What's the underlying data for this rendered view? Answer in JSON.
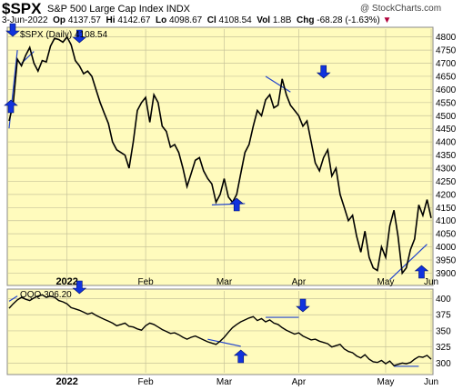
{
  "header": {
    "symbol": "$SPX",
    "description": "S&P 500 Large Cap Index",
    "exchange": "INDX",
    "brand": "@ StockCharts.com",
    "stats": {
      "date": "3-Jun-2022",
      "open_label": "Op",
      "open": "4137.57",
      "high_label": "Hi",
      "high": "4142.67",
      "low_label": "Lo",
      "low": "4098.67",
      "close_label": "Cl",
      "close": "4108.54",
      "vol_label": "Vol",
      "vol": "1.8B",
      "chg_label": "Chg",
      "chg": "-68.28 (-1.63%)"
    }
  },
  "chart_data": [
    {
      "type": "line",
      "legend": "$SPX (Daily) 4108.54",
      "series": [
        {
          "name": "$SPX (Daily)",
          "color": "#000000",
          "values": [
            4480,
            4545,
            4715,
            4690,
            4730,
            4760,
            4700,
            4670,
            4710,
            4705,
            4765,
            4795,
            4790,
            4780,
            4800,
            4770,
            4710,
            4690,
            4660,
            4670,
            4650,
            4600,
            4550,
            4510,
            4470,
            4400,
            4370,
            4360,
            4350,
            4300,
            4400,
            4520,
            4550,
            4570,
            4475,
            4580,
            4550,
            4460,
            4440,
            4380,
            4390,
            4360,
            4300,
            4230,
            4280,
            4330,
            4340,
            4290,
            4260,
            4240,
            4170,
            4200,
            4260,
            4190,
            4170,
            4200,
            4280,
            4360,
            4390,
            4460,
            4520,
            4500,
            4560,
            4580,
            4530,
            4540,
            4640,
            4580,
            4540,
            4520,
            4500,
            4460,
            4480,
            4400,
            4320,
            4290,
            4340,
            4370,
            4270,
            4300,
            4200,
            4150,
            4100,
            4120,
            4040,
            3980,
            4060,
            3960,
            3920,
            3910,
            4000,
            3960,
            4080,
            4140,
            4040,
            3900,
            3920,
            3990,
            4030,
            4160,
            4120,
            4180,
            4110
          ]
        }
      ],
      "y_ticks": [
        3900,
        3950,
        4000,
        4050,
        4100,
        4150,
        4200,
        4250,
        4300,
        4350,
        4400,
        4450,
        4500,
        4550,
        4600,
        4650,
        4700,
        4750,
        4800
      ],
      "ylim": [
        3860,
        4830
      ],
      "x_tick_labels": [
        "2022",
        "Feb",
        "Mar",
        "Apr",
        "May",
        "Jun"
      ],
      "x_tick_index": [
        14,
        33,
        52,
        70,
        91,
        102
      ],
      "grid": true,
      "arrows_down_index": [
        17,
        76
      ],
      "arrows_up_index": [
        3,
        55,
        101
      ]
    },
    {
      "type": "line",
      "legend": "QQQ 306.20",
      "series": [
        {
          "name": "QQQ",
          "color": "#000000",
          "values": [
            385,
            392,
            398,
            402,
            399,
            397,
            401,
            404,
            406,
            402,
            404,
            402,
            397,
            395,
            392,
            386,
            384,
            382,
            379,
            376,
            378,
            374,
            371,
            368,
            365,
            362,
            358,
            360,
            362,
            357,
            356,
            353,
            351,
            358,
            362,
            360,
            356,
            352,
            349,
            346,
            347,
            344,
            340,
            337,
            340,
            342,
            339,
            336,
            333,
            331,
            329,
            334,
            340,
            348,
            355,
            360,
            364,
            367,
            370,
            372,
            366,
            369,
            364,
            367,
            362,
            360,
            355,
            351,
            348,
            345,
            347,
            342,
            339,
            336,
            337,
            334,
            332,
            330,
            325,
            327,
            329,
            322,
            318,
            316,
            311,
            308,
            313,
            306,
            302,
            301,
            304,
            299,
            303,
            296,
            298,
            300,
            299,
            301,
            306,
            310,
            309,
            312,
            306
          ]
        }
      ],
      "y_ticks": [
        300,
        325,
        350,
        375,
        400
      ],
      "ylim": [
        285,
        412
      ],
      "x_tick_labels": [
        "2022",
        "Feb",
        "Mar",
        "Apr",
        "May",
        "Jun"
      ],
      "x_tick_index": [
        14,
        33,
        52,
        70,
        91,
        102
      ],
      "grid": true
    }
  ]
}
